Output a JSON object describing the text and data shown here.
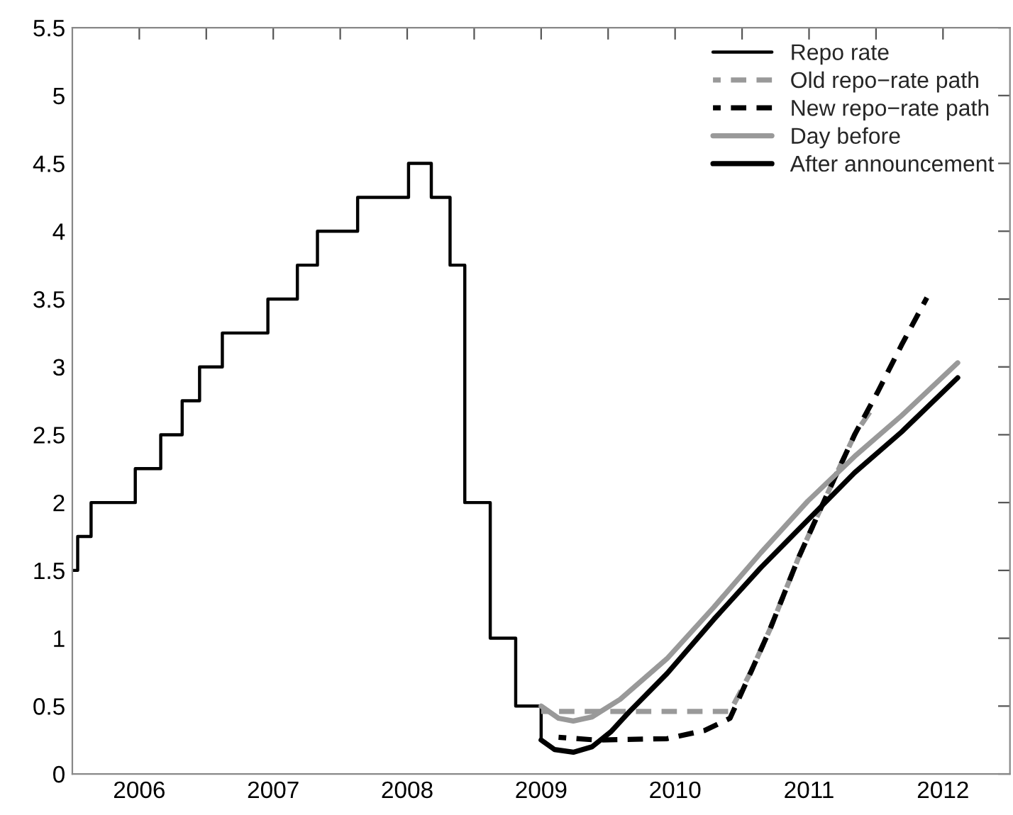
{
  "chart_data": {
    "type": "line",
    "xlim": [
      2006,
      2013
    ],
    "ylim": [
      0,
      5.5
    ],
    "xticks": [
      {
        "value": 2006.5,
        "label": "2006"
      },
      {
        "value": 2007.5,
        "label": "2007"
      },
      {
        "value": 2008.5,
        "label": "2008"
      },
      {
        "value": 2009.5,
        "label": "2009"
      },
      {
        "value": 2010.5,
        "label": "2010"
      },
      {
        "value": 2011.5,
        "label": "2011"
      },
      {
        "value": 2012.5,
        "label": "2012"
      },
      {
        "value": 2007,
        "label": null
      },
      {
        "value": 2008,
        "label": null
      },
      {
        "value": 2009,
        "label": null
      },
      {
        "value": 2010,
        "label": null
      },
      {
        "value": 2011,
        "label": null
      },
      {
        "value": 2012,
        "label": null
      }
    ],
    "yticks": [
      0,
      0.5,
      1,
      1.5,
      2,
      2.5,
      3,
      3.5,
      4,
      4.5,
      5,
      5.5
    ],
    "grid": false,
    "legend": "top right",
    "series": [
      {
        "name": "Repo rate",
        "type": "step",
        "color": "#000000",
        "line_style": "solid",
        "x": [
          2006.0,
          2006.04,
          2006.14,
          2006.47,
          2006.66,
          2006.82,
          2006.95,
          2007.12,
          2007.46,
          2007.68,
          2007.83,
          2008.13,
          2008.51,
          2008.68,
          2008.82,
          2008.93,
          2009.12,
          2009.31,
          2009.5
        ],
        "values": [
          1.5,
          1.75,
          2,
          2.25,
          2.5,
          2.75,
          3,
          3.25,
          3.5,
          3.75,
          4,
          4.25,
          4.5,
          4.25,
          3.75,
          2,
          1,
          0.5,
          0.25
        ]
      },
      {
        "name": "Old repo−rate path",
        "color": "#999999",
        "line_style": "dashed",
        "x": [
          2009.5,
          2010.91,
          2011.07,
          2011.21,
          2011.42,
          2011.63,
          2011.84,
          2011.99
        ],
        "values": [
          0.46,
          0.46,
          0.76,
          1.07,
          1.59,
          2.05,
          2.5,
          2.72
        ]
      },
      {
        "name": "New repo−rate path",
        "color": "#000000",
        "line_style": "dashed",
        "x": [
          2009.63,
          2009.91,
          2010.44,
          2010.72,
          2010.91,
          2011.07,
          2011.21,
          2011.42,
          2011.63,
          2011.84,
          2012.01,
          2012.19,
          2012.38
        ],
        "values": [
          0.27,
          0.25,
          0.26,
          0.32,
          0.41,
          0.76,
          1.07,
          1.59,
          2.05,
          2.5,
          2.81,
          3.16,
          3.51
        ]
      },
      {
        "name": "Day before",
        "color": "#999999",
        "line_style": "solid",
        "x": [
          2009.5,
          2009.63,
          2009.74,
          2009.88,
          2010.09,
          2010.44,
          2010.79,
          2011.14,
          2011.49,
          2011.84,
          2012.19,
          2012.61
        ],
        "values": [
          0.5,
          0.41,
          0.39,
          0.42,
          0.55,
          0.85,
          1.23,
          1.63,
          2.01,
          2.34,
          2.64,
          3.03
        ]
      },
      {
        "name": "After announcement",
        "color": "#000000",
        "line_style": "solid",
        "x": [
          2009.5,
          2009.6,
          2009.74,
          2009.88,
          2010.02,
          2010.16,
          2010.44,
          2010.79,
          2011.14,
          2011.49,
          2011.84,
          2012.19,
          2012.61
        ],
        "values": [
          0.25,
          0.18,
          0.16,
          0.2,
          0.31,
          0.46,
          0.74,
          1.14,
          1.52,
          1.87,
          2.22,
          2.52,
          2.92
        ]
      }
    ]
  }
}
